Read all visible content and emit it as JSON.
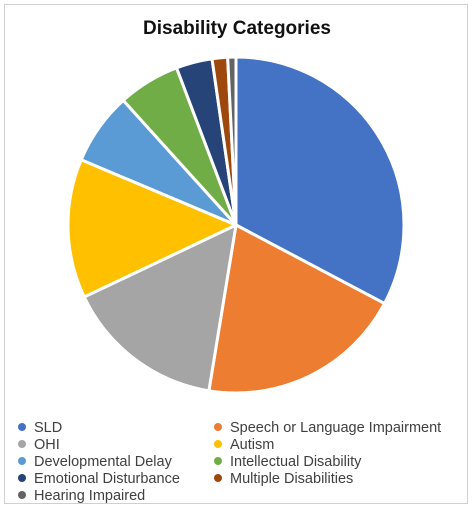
{
  "chart_data": {
    "type": "pie",
    "title": "Disability Categories",
    "categories": [
      "SLD",
      "Speech or Language Impairment",
      "OHI",
      "Autism",
      "Developmental Delay",
      "Intellectual Disability",
      "Emotional Disturbance",
      "Multiple Disabilities",
      "Hearing Impaired"
    ],
    "values": [
      33.0,
      20.0,
      15.5,
      13.5,
      7.0,
      6.0,
      3.5,
      1.5,
      0.8
    ],
    "colors": [
      "#4472C4",
      "#ED7D31",
      "#A5A5A5",
      "#FFC000",
      "#5B9BD5",
      "#70AD47",
      "#264478",
      "#9E480E",
      "#636363"
    ],
    "legend_position": "bottom"
  }
}
